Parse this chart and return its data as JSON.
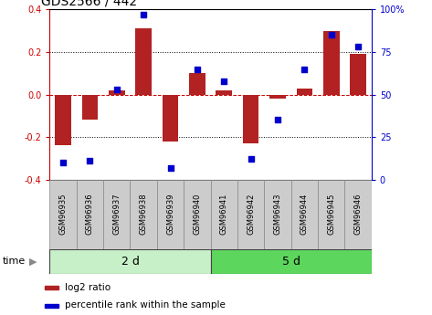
{
  "title": "GDS2566 / 442",
  "samples": [
    "GSM96935",
    "GSM96936",
    "GSM96937",
    "GSM96938",
    "GSM96939",
    "GSM96940",
    "GSM96941",
    "GSM96942",
    "GSM96943",
    "GSM96944",
    "GSM96945",
    "GSM96946"
  ],
  "log2_ratio": [
    -0.24,
    -0.12,
    0.02,
    0.31,
    -0.22,
    0.1,
    0.02,
    -0.23,
    -0.02,
    0.03,
    0.3,
    0.19
  ],
  "percentile_rank": [
    10,
    11,
    53,
    97,
    7,
    65,
    58,
    12,
    35,
    65,
    85,
    78
  ],
  "groups": [
    {
      "label": "2 d",
      "start": 0,
      "end": 6
    },
    {
      "label": "5 d",
      "start": 6,
      "end": 12
    }
  ],
  "group_colors": [
    "#c8f0c8",
    "#5cd65c"
  ],
  "bar_color": "#b22222",
  "dot_color": "#0000cc",
  "bar_width": 0.6,
  "ylim_left": [
    -0.4,
    0.4
  ],
  "ylim_right": [
    0,
    100
  ],
  "yticks_left": [
    -0.4,
    -0.2,
    0.0,
    0.2,
    0.4
  ],
  "yticks_right": [
    0,
    25,
    50,
    75,
    100
  ],
  "yticklabels_right": [
    "0",
    "25",
    "50",
    "75",
    "100%"
  ],
  "dotted_lines": [
    -0.2,
    0.2
  ],
  "zero_line_color": "#cc0000",
  "legend_items": [
    "log2 ratio",
    "percentile rank within the sample"
  ],
  "time_label": "time",
  "background_color": "#ffffff",
  "tick_label_bg": "#cccccc",
  "title_fontsize": 10,
  "tick_fontsize": 7,
  "sample_fontsize": 6,
  "legend_fontsize": 7.5
}
